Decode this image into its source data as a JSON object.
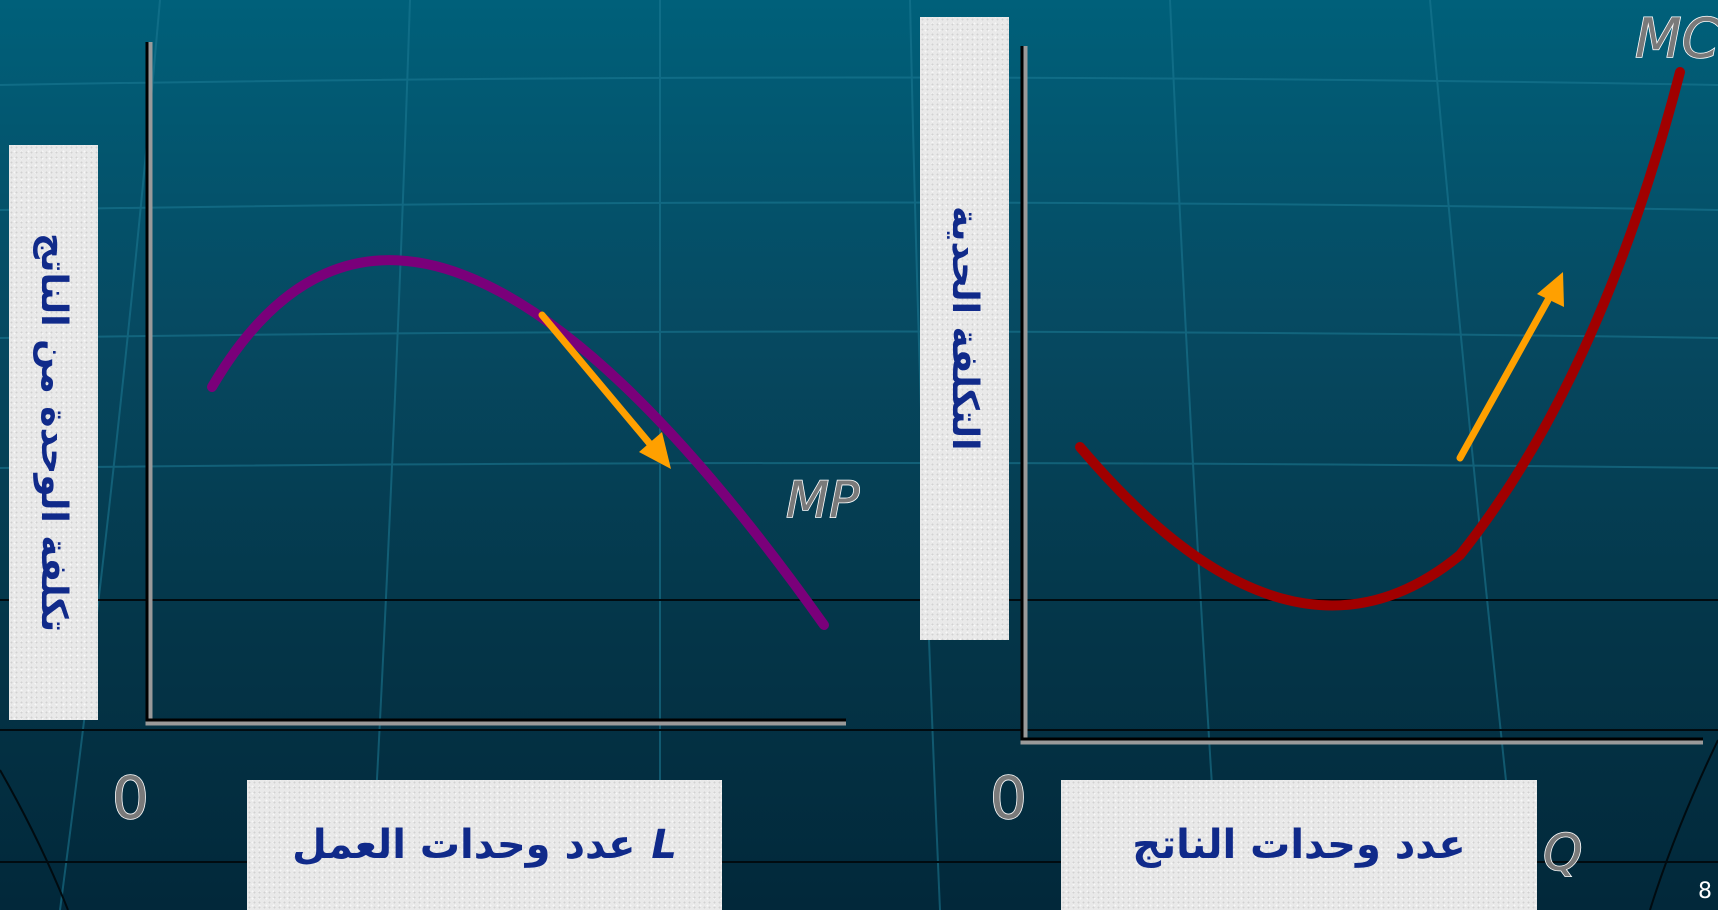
{
  "left_graph": {
    "y_axis_label": "تكلفة الوحدة من الناتج",
    "x_axis_label": "عدد وحدات العمل",
    "x_axis_symbol": "L",
    "origin": "0",
    "curve_label": "MP",
    "curve_color": "#7a007a",
    "arrow_color": "#ffa000"
  },
  "right_graph": {
    "y_axis_label": "التكلفة الحدية",
    "x_axis_label": "عدد وحدات الناتج",
    "origin": "0",
    "x_axis_symbol": "Q",
    "curve_label": "MC",
    "curve_color": "#a00000",
    "arrow_color": "#ffa000"
  },
  "page_number": "8"
}
